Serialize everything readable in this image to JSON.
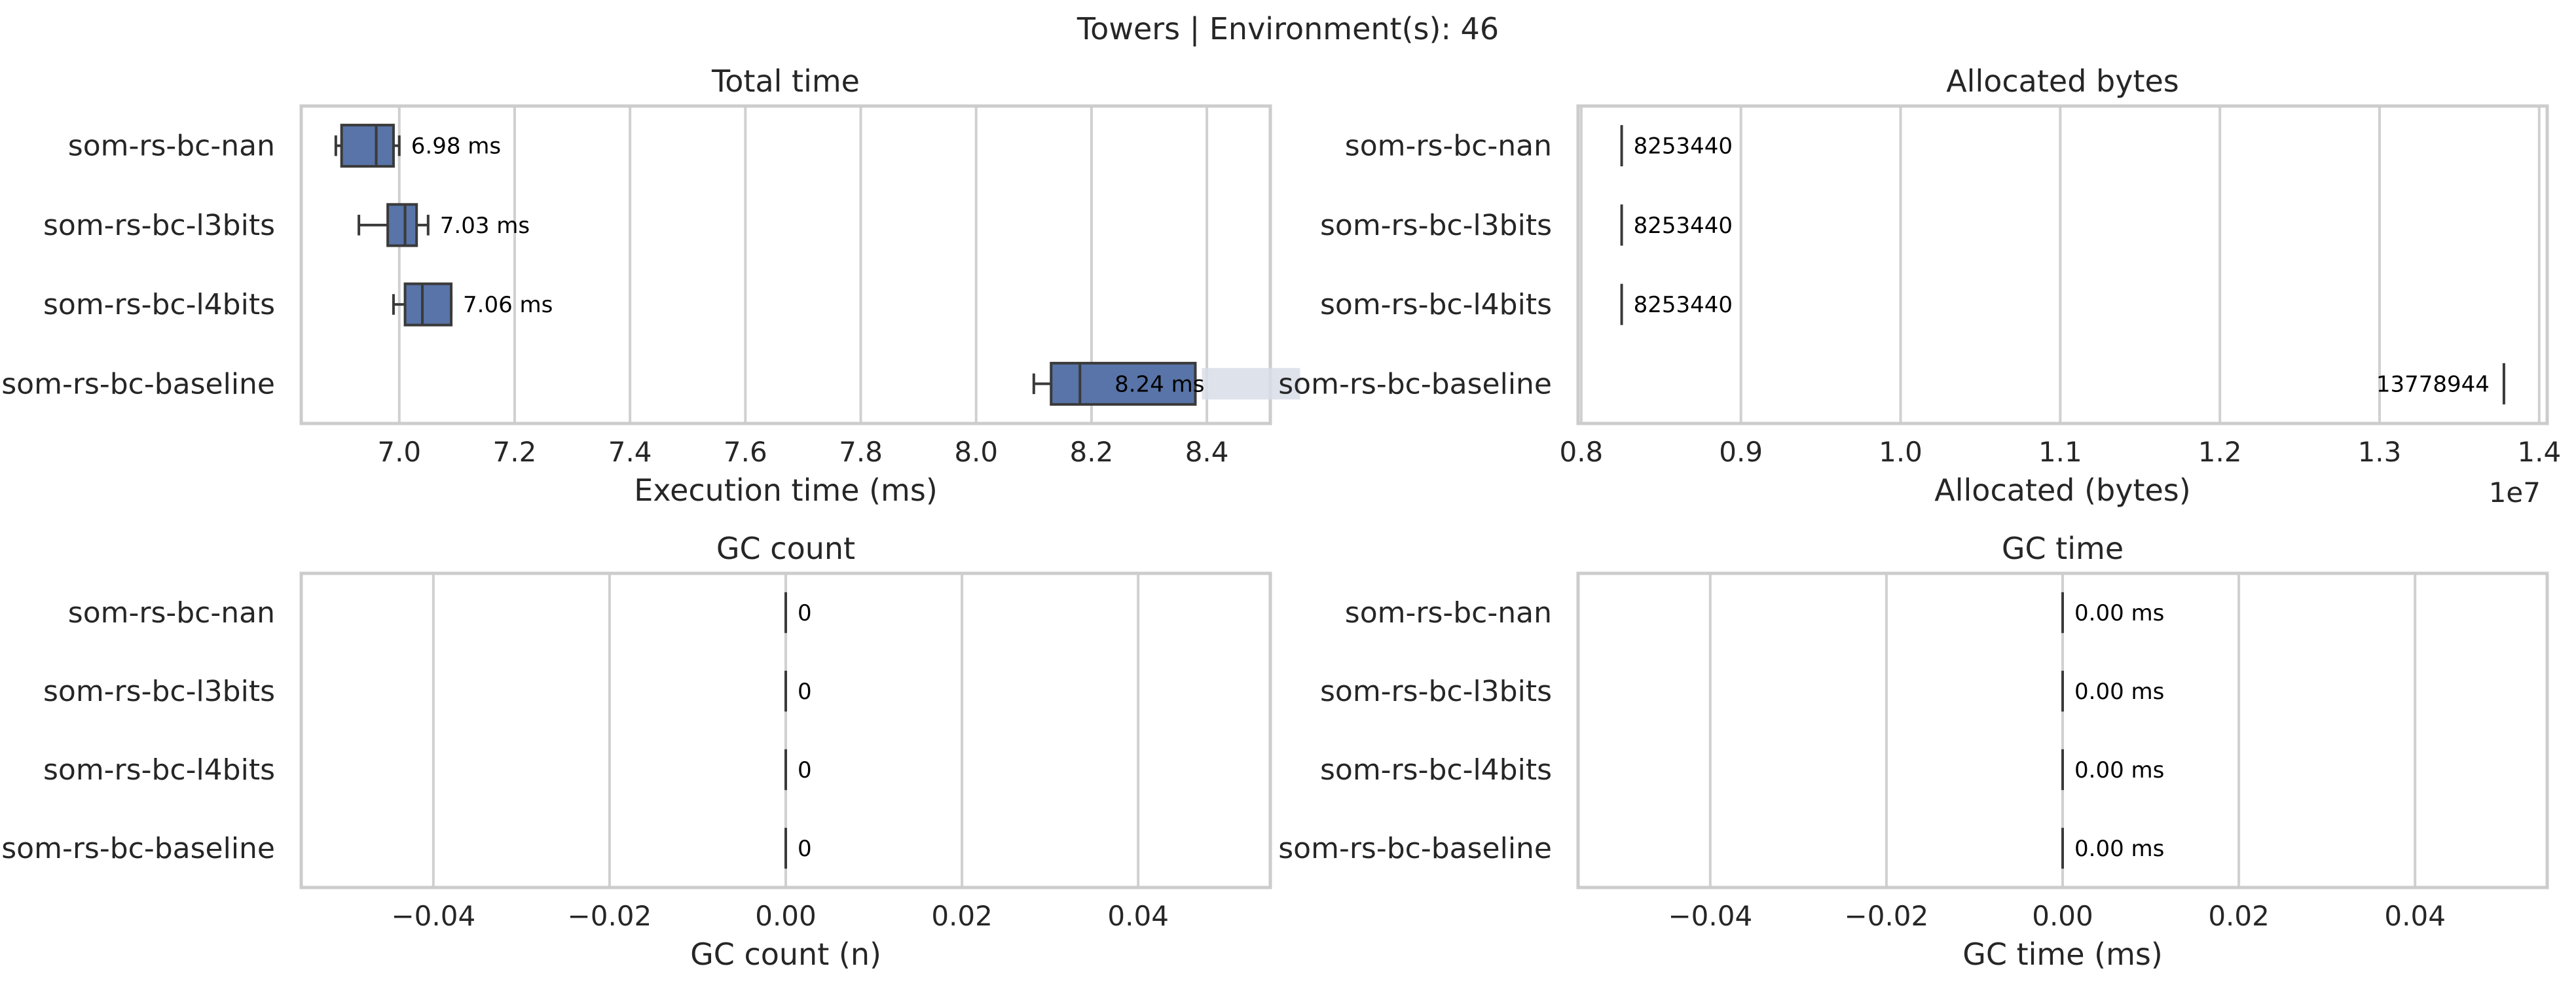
{
  "suptitle": "Towers | Environment(s): 46",
  "colors": {
    "box": "#5874a8",
    "grid": "#d0d0d0",
    "frame": "#cccccc",
    "line": "#3a3a3a",
    "label_bg": "#d8dde8"
  },
  "categories": [
    "som-rs-bc-nan",
    "som-rs-bc-l3bits",
    "som-rs-bc-l4bits",
    "som-rs-bc-baseline"
  ],
  "chart_data": [
    {
      "type": "box",
      "title": "Total time",
      "xlabel": "Execution time (ms)",
      "xlim": [
        6.83,
        8.51
      ],
      "xticks": [
        7.0,
        7.2,
        7.4,
        7.6,
        7.8,
        8.0,
        8.2,
        8.4
      ],
      "xtick_labels": [
        "7.0",
        "7.2",
        "7.4",
        "7.6",
        "7.8",
        "8.0",
        "8.2",
        "8.4"
      ],
      "offset_label": "",
      "boxes": [
        {
          "category": "som-rs-bc-nan",
          "whislo": 6.89,
          "q1": 6.9,
          "med": 6.96,
          "q3": 6.99,
          "whishi": 7.0,
          "label": "6.98 ms"
        },
        {
          "category": "som-rs-bc-l3bits",
          "whislo": 6.93,
          "q1": 6.98,
          "med": 7.01,
          "q3": 7.03,
          "whishi": 7.05,
          "label": "7.03 ms"
        },
        {
          "category": "som-rs-bc-l4bits",
          "whislo": 6.99,
          "q1": 7.01,
          "med": 7.04,
          "q3": 7.09,
          "whishi": 7.09,
          "label": "7.06 ms"
        },
        {
          "category": "som-rs-bc-baseline",
          "whislo": 8.1,
          "q1": 8.13,
          "med": 8.18,
          "q3": 8.38,
          "whishi": 8.38,
          "label": "8.24 ms"
        }
      ]
    },
    {
      "type": "box",
      "title": "Allocated bytes",
      "xlabel": "Allocated (bytes)",
      "xlim": [
        0.798,
        1.405
      ],
      "xticks": [
        0.8,
        0.9,
        1.0,
        1.1,
        1.2,
        1.3,
        1.4
      ],
      "xtick_labels": [
        "0.8",
        "0.9",
        "1.0",
        "1.1",
        "1.2",
        "1.3",
        "1.4"
      ],
      "offset_label": "1e7",
      "boxes": [
        {
          "category": "som-rs-bc-nan",
          "whislo": 0.8253,
          "q1": 0.8253,
          "med": 0.8253,
          "q3": 0.8253,
          "whishi": 0.8253,
          "label": "8253440"
        },
        {
          "category": "som-rs-bc-l3bits",
          "whislo": 0.8253,
          "q1": 0.8253,
          "med": 0.8253,
          "q3": 0.8253,
          "whishi": 0.8253,
          "label": "8253440"
        },
        {
          "category": "som-rs-bc-l4bits",
          "whislo": 0.8253,
          "q1": 0.8253,
          "med": 0.8253,
          "q3": 0.8253,
          "whishi": 0.8253,
          "label": "8253440"
        },
        {
          "category": "som-rs-bc-baseline",
          "whislo": 1.3779,
          "q1": 1.3779,
          "med": 1.3779,
          "q3": 1.3779,
          "whishi": 1.3779,
          "label": "13778944"
        }
      ]
    },
    {
      "type": "box",
      "title": "GC count",
      "xlabel": "GC count (n)",
      "xlim": [
        -0.055,
        0.055
      ],
      "xticks": [
        -0.04,
        -0.02,
        0.0,
        0.02,
        0.04
      ],
      "xtick_labels": [
        "−0.04",
        "−0.02",
        "0.00",
        "0.02",
        "0.04"
      ],
      "offset_label": "",
      "boxes": [
        {
          "category": "som-rs-bc-nan",
          "whislo": 0,
          "q1": 0,
          "med": 0,
          "q3": 0,
          "whishi": 0,
          "label": "0"
        },
        {
          "category": "som-rs-bc-l3bits",
          "whislo": 0,
          "q1": 0,
          "med": 0,
          "q3": 0,
          "whishi": 0,
          "label": "0"
        },
        {
          "category": "som-rs-bc-l4bits",
          "whislo": 0,
          "q1": 0,
          "med": 0,
          "q3": 0,
          "whishi": 0,
          "label": "0"
        },
        {
          "category": "som-rs-bc-baseline",
          "whislo": 0,
          "q1": 0,
          "med": 0,
          "q3": 0,
          "whishi": 0,
          "label": "0"
        }
      ]
    },
    {
      "type": "box",
      "title": "GC time",
      "xlabel": "GC time (ms)",
      "xlim": [
        -0.055,
        0.055
      ],
      "xticks": [
        -0.04,
        -0.02,
        0.0,
        0.02,
        0.04
      ],
      "xtick_labels": [
        "−0.04",
        "−0.02",
        "0.00",
        "0.02",
        "0.04"
      ],
      "offset_label": "",
      "boxes": [
        {
          "category": "som-rs-bc-nan",
          "whislo": 0,
          "q1": 0,
          "med": 0,
          "q3": 0,
          "whishi": 0,
          "label": "0.00 ms"
        },
        {
          "category": "som-rs-bc-l3bits",
          "whislo": 0,
          "q1": 0,
          "med": 0,
          "q3": 0,
          "whishi": 0,
          "label": "0.00 ms"
        },
        {
          "category": "som-rs-bc-l4bits",
          "whislo": 0,
          "q1": 0,
          "med": 0,
          "q3": 0,
          "whishi": 0,
          "label": "0.00 ms"
        },
        {
          "category": "som-rs-bc-baseline",
          "whislo": 0,
          "q1": 0,
          "med": 0,
          "q3": 0,
          "whishi": 0,
          "label": "0.00 ms"
        }
      ]
    }
  ]
}
